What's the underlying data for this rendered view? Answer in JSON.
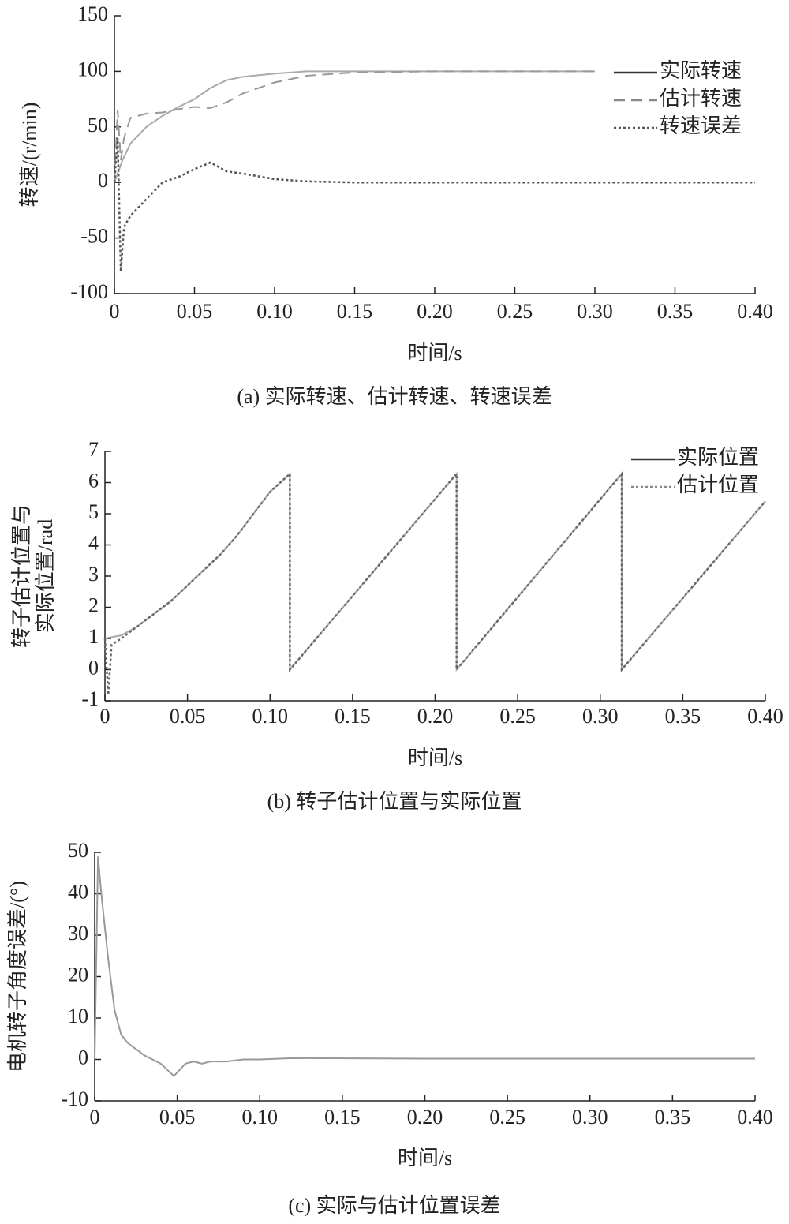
{
  "chart_data": [
    {
      "type": "line",
      "caption": "(a) 实际转速、估计转速、转速误差",
      "xlabel": "时间/s",
      "ylabel": [
        "转速/(r/min)"
      ],
      "xlim": [
        0,
        0.4
      ],
      "ylim": [
        -100,
        150
      ],
      "xticks": [
        0,
        0.05,
        {
          "value": 0.1,
          "label": "0.10"
        },
        0.15,
        {
          "value": 0.2,
          "label": "0.20"
        },
        0.25,
        {
          "value": 0.3,
          "label": "0.30"
        },
        0.35,
        {
          "value": 0.4,
          "label": "0.40"
        }
      ],
      "yticks": [
        -100,
        -50,
        0,
        50,
        100,
        150
      ],
      "legend": "upper right",
      "series": [
        {
          "name": "实际转速",
          "color": "#aaaaaa",
          "legend_color": "#333333",
          "dash": "solid",
          "x": [
            0,
            0.005,
            0.01,
            0.02,
            0.03,
            0.04,
            0.05,
            0.06,
            0.07,
            0.08,
            0.1,
            0.12,
            0.15,
            0.2,
            0.3
          ],
          "values": [
            0,
            20,
            35,
            50,
            60,
            68,
            75,
            85,
            92,
            95,
            98,
            100,
            100,
            100,
            100
          ]
        },
        {
          "name": "估计转速",
          "color": "#999999",
          "legend_color": "#888888",
          "dash": "dashed",
          "x": [
            0,
            0.002,
            0.004,
            0.006,
            0.01,
            0.02,
            0.03,
            0.04,
            0.05,
            0.06,
            0.07,
            0.08,
            0.1,
            0.12,
            0.15,
            0.2,
            0.3
          ],
          "values": [
            0,
            65,
            20,
            40,
            58,
            62,
            63,
            66,
            68,
            67,
            72,
            80,
            90,
            96,
            99,
            100,
            100
          ]
        },
        {
          "name": "转速误差",
          "color": "#555555",
          "legend_color": "#555555",
          "dash": "dotted",
          "x": [
            0,
            0.002,
            0.004,
            0.006,
            0.01,
            0.02,
            0.03,
            0.04,
            0.05,
            0.06,
            0.07,
            0.08,
            0.1,
            0.12,
            0.15,
            0.2,
            0.3,
            0.4
          ],
          "values": [
            0,
            40,
            -80,
            -40,
            -30,
            -15,
            0,
            5,
            12,
            18,
            10,
            8,
            3,
            1,
            0,
            0,
            0,
            0
          ]
        }
      ]
    },
    {
      "type": "line",
      "caption": "(b) 转子估计位置与实际位置",
      "xlabel": "时间/s",
      "ylabel": [
        "转子估计位置与",
        "实际位置/rad"
      ],
      "xlim": [
        0,
        0.4
      ],
      "ylim": [
        -1,
        7
      ],
      "xticks": [
        0,
        0.05,
        {
          "value": 0.1,
          "label": "0.10"
        },
        0.15,
        {
          "value": 0.2,
          "label": "0.20"
        },
        0.25,
        {
          "value": 0.3,
          "label": "0.30"
        },
        0.35,
        {
          "value": 0.4,
          "label": "0.40"
        }
      ],
      "yticks": [
        -1,
        0,
        1,
        2,
        3,
        4,
        5,
        6,
        7
      ],
      "legend": "upper right",
      "series": [
        {
          "name": "实际位置",
          "color": "#aaaaaa",
          "legend_color": "#333333",
          "dash": "solid",
          "x": [
            0,
            0.01,
            0.02,
            0.03,
            0.04,
            0.05,
            0.06,
            0.07,
            0.08,
            0.09,
            0.1,
            0.112,
            0.112,
            0.213,
            0.213,
            0.313,
            0.313,
            0.4
          ],
          "values": [
            1,
            1.1,
            1.4,
            1.8,
            2.2,
            2.7,
            3.2,
            3.7,
            4.3,
            5,
            5.7,
            6.28,
            0,
            6.28,
            0,
            6.28,
            0,
            5.4
          ]
        },
        {
          "name": "估计位置",
          "color": "#666666",
          "legend_color": "#888888",
          "dash": "dotted",
          "x": [
            0,
            0.002,
            0.004,
            0.01,
            0.02,
            0.03,
            0.04,
            0.05,
            0.06,
            0.07,
            0.08,
            0.09,
            0.1,
            0.112,
            0.112,
            0.213,
            0.213,
            0.313,
            0.313,
            0.4
          ],
          "values": [
            1,
            -0.8,
            0.8,
            1,
            1.4,
            1.8,
            2.2,
            2.7,
            3.2,
            3.7,
            4.3,
            5,
            5.7,
            6.28,
            0,
            6.28,
            0,
            6.28,
            0,
            5.4
          ]
        }
      ]
    },
    {
      "type": "line",
      "caption": "(c) 实际与估计位置误差",
      "xlabel": "时间/s",
      "ylabel": [
        "电机转子角度误差/(°)"
      ],
      "xlim": [
        0,
        0.4
      ],
      "ylim": [
        -10,
        50
      ],
      "xticks": [
        0,
        0.05,
        {
          "value": 0.1,
          "label": "0.10"
        },
        0.15,
        {
          "value": 0.2,
          "label": "0.20"
        },
        0.25,
        {
          "value": 0.3,
          "label": "0.30"
        },
        0.35,
        {
          "value": 0.4,
          "label": "0.40"
        }
      ],
      "yticks": [
        -10,
        0,
        10,
        20,
        30,
        40,
        50
      ],
      "series": [
        {
          "color": "#999999",
          "dash": "solid",
          "x": [
            0,
            0.002,
            0.004,
            0.008,
            0.012,
            0.016,
            0.02,
            0.03,
            0.04,
            0.048,
            0.055,
            0.06,
            0.065,
            0.07,
            0.08,
            0.09,
            0.1,
            0.12,
            0.2,
            0.4
          ],
          "values": [
            0,
            49,
            40,
            25,
            12,
            6,
            4,
            1,
            -1,
            -4,
            -1,
            -0.5,
            -1,
            -0.5,
            -0.5,
            0,
            0,
            0.3,
            0.2,
            0.2
          ]
        }
      ]
    }
  ]
}
